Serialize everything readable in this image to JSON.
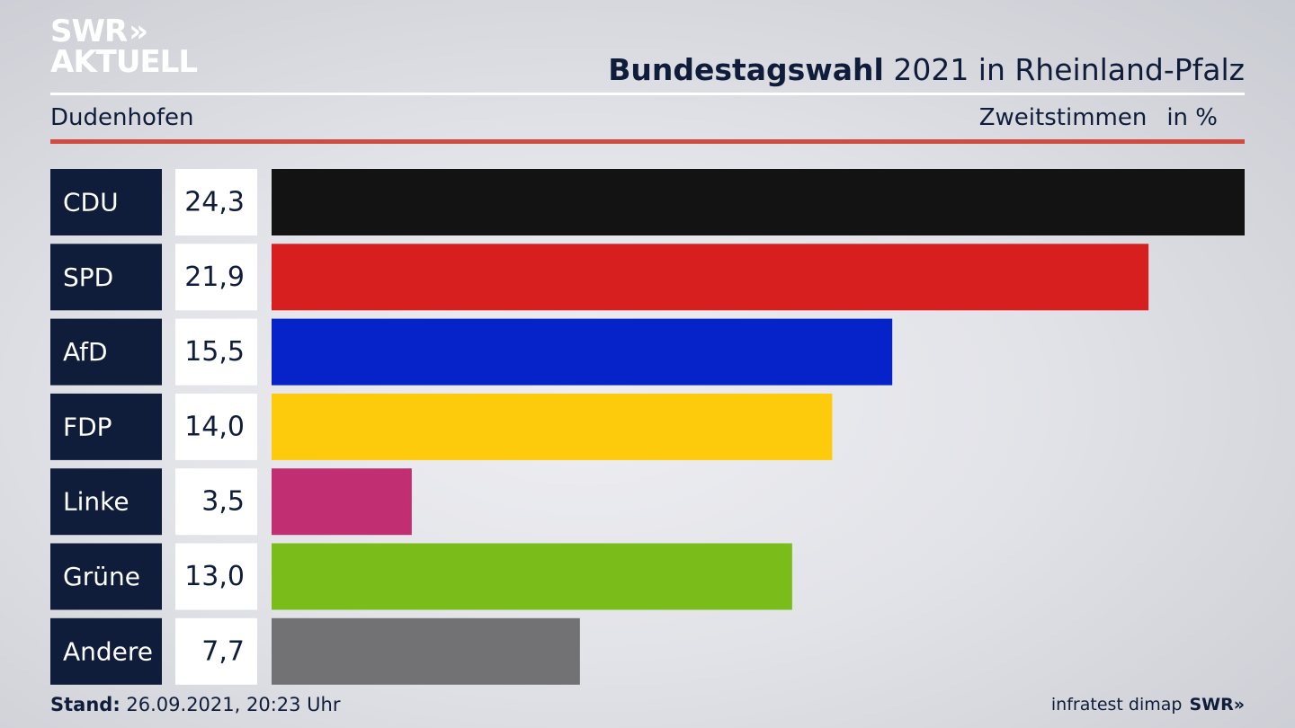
{
  "logo": {
    "line1": "SWR",
    "line2": "AKTUELL",
    "chevrons": "»"
  },
  "header": {
    "title_bold": "Bundestagswahl",
    "title_rest": " 2021 in Rheinland-Pfalz",
    "location": "Dudenhofen",
    "measure": "Zweitstimmen",
    "unit": "in %"
  },
  "footer": {
    "stand_label": "Stand:",
    "stand_value": " 26.09.2021, 20:23 Uhr",
    "source": "infratest dimap",
    "source_logo": "SWR»"
  },
  "colors": {
    "label_bg": "#0f1d3a",
    "accent_rule": "#cf4c43"
  },
  "chart_data": {
    "type": "bar",
    "orientation": "horizontal",
    "categories": [
      "CDU",
      "SPD",
      "AfD",
      "FDP",
      "Linke",
      "Grüne",
      "Andere"
    ],
    "values": [
      24.3,
      21.9,
      15.5,
      14.0,
      3.5,
      13.0,
      7.7
    ],
    "value_labels": [
      "24,3",
      "21,9",
      "15,5",
      "14,0",
      "3,5",
      "13,0",
      "7,7"
    ],
    "colors": [
      "#131313",
      "#d71f1f",
      "#0523c8",
      "#fdcb0b",
      "#c12e72",
      "#7abd1b",
      "#727274"
    ],
    "grid": false
  }
}
